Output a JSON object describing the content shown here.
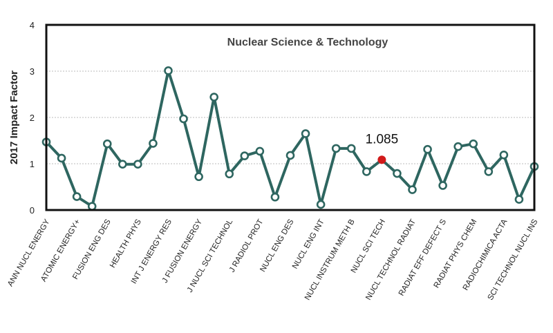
{
  "chart_data": {
    "type": "line",
    "title": "Nuclear Science & Technology",
    "xlabel": "",
    "ylabel": "2017 Impact Factor",
    "ylim": [
      0,
      4
    ],
    "yticks": [
      0,
      1,
      2,
      3,
      4
    ],
    "grid": true,
    "colors": {
      "line": "#2e6660",
      "marker_fill": "#ffffff",
      "highlight": "#d11a1a",
      "frame": "#111111",
      "grid": "#bbbbbb"
    },
    "x_tick_labels": [
      "ANN NUCL ENERGY",
      "ATOMIC ENERGY+",
      "FUSION ENG DES",
      "HEALTH PHYS",
      "INT J ENERGY RES",
      "J FUSION ENERGY",
      "J NUCL SCI TECHNOL",
      "J RADIOL PROT",
      "NUCL ENG DES",
      "NUCL ENG INT",
      "NUCL INSTRUM METH B",
      "NUCL SCI TECH",
      "NUCL TECHNOL RADIAT",
      "RADIAT EFF DEFECT S",
      "RADIAT PHYS CHEM",
      "RADIOCHIMICA ACTA",
      "SCI TECHNOL NUCL INS"
    ],
    "values": [
      1.47,
      1.12,
      0.29,
      0.08,
      1.43,
      0.99,
      0.99,
      1.44,
      3.01,
      1.97,
      0.72,
      2.44,
      0.78,
      1.17,
      1.27,
      0.28,
      1.18,
      1.65,
      0.12,
      1.33,
      1.33,
      0.83,
      1.085,
      0.79,
      0.44,
      1.31,
      0.53,
      1.37,
      1.43,
      0.83,
      1.19,
      0.23,
      0.94
    ],
    "highlight_index": 22,
    "annotation": "1.085"
  }
}
